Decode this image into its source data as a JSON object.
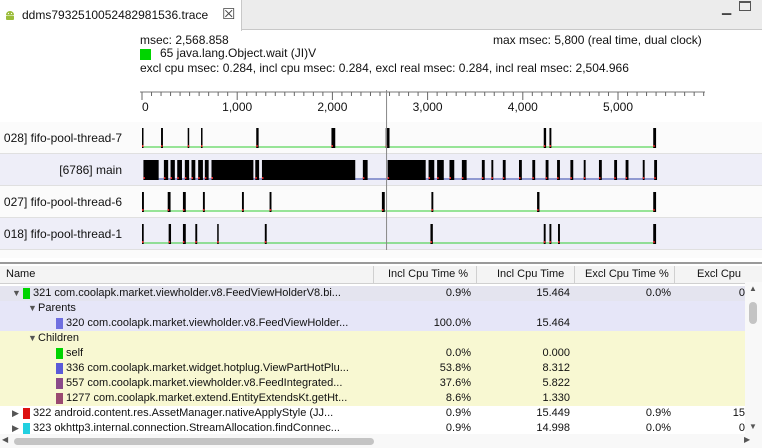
{
  "tab": {
    "title": "ddms7932510052482981536.trace",
    "close": "☒",
    "icon": "android-icon"
  },
  "window": {
    "minimize": "▁"
  },
  "header": {
    "msec": "msec: 2,568.858",
    "max_msec": "max msec: 5,800 (real time, dual clock)",
    "method_color": "#00d400",
    "method_name": "65 java.lang.Object.wait (JI)V",
    "excl_line": "excl cpu msec: 0.284, incl cpu msec: 0.284, excl real msec: 0.284, incl real msec: 2,504.966"
  },
  "timeline": {
    "ticks": [
      {
        "value": 0,
        "label": "0"
      },
      {
        "value": 1000,
        "label": "1,000"
      },
      {
        "value": 2000,
        "label": "2,000"
      },
      {
        "value": 3000,
        "label": "3,000"
      },
      {
        "value": 4000,
        "label": "4,000"
      },
      {
        "value": 5000,
        "label": "5,000"
      }
    ],
    "cursor_value": 2568.858,
    "threads": [
      {
        "label": "028] fifo-pool-thread-7",
        "line_color": "#33cc33",
        "events": [
          [
            0,
            15
          ],
          [
            200,
            220
          ],
          [
            480,
            490
          ],
          [
            620,
            635
          ],
          [
            1200,
            1225
          ],
          [
            1990,
            2030
          ],
          [
            2560,
            2600
          ],
          [
            4220,
            4245
          ],
          [
            4280,
            4300
          ],
          [
            5370,
            5400
          ]
        ]
      },
      {
        "label": "[6786] main",
        "line_color": "#3344aa",
        "events": [
          [
            15,
            175
          ],
          [
            230,
            275
          ],
          [
            300,
            345
          ],
          [
            370,
            420
          ],
          [
            450,
            495
          ],
          [
            520,
            560
          ],
          [
            590,
            640
          ],
          [
            660,
            700
          ],
          [
            730,
            1170
          ],
          [
            1190,
            1230
          ],
          [
            1260,
            2240
          ],
          [
            2320,
            2370
          ],
          [
            2580,
            2980
          ],
          [
            3010,
            3070
          ],
          [
            3100,
            3170
          ],
          [
            3230,
            3280
          ],
          [
            3360,
            3410
          ],
          [
            3570,
            3600
          ],
          [
            3670,
            3690
          ],
          [
            3790,
            3820
          ],
          [
            3960,
            3990
          ],
          [
            4100,
            4130
          ],
          [
            4240,
            4270
          ],
          [
            4360,
            4390
          ],
          [
            4500,
            4530
          ],
          [
            4640,
            4660
          ],
          [
            4800,
            4830
          ],
          [
            4960,
            4990
          ],
          [
            5080,
            5110
          ],
          [
            5260,
            5280
          ],
          [
            5380,
            5410
          ]
        ]
      },
      {
        "label": "027] fifo-pool-thread-6",
        "line_color": "#33cc33",
        "events": [
          [
            0,
            20
          ],
          [
            270,
            300
          ],
          [
            430,
            460
          ],
          [
            640,
            660
          ],
          [
            1050,
            1070
          ],
          [
            1340,
            1360
          ],
          [
            2520,
            2550
          ],
          [
            3040,
            3060
          ],
          [
            4150,
            4175
          ],
          [
            5370,
            5400
          ]
        ]
      },
      {
        "label": "018] fifo-pool-thread-1",
        "line_color": "#33cc33",
        "events": [
          [
            0,
            18
          ],
          [
            280,
            305
          ],
          [
            430,
            460
          ],
          [
            560,
            580
          ],
          [
            790,
            805
          ],
          [
            1290,
            1310
          ],
          [
            3030,
            3055
          ],
          [
            4220,
            4240
          ],
          [
            4280,
            4300
          ],
          [
            4370,
            4390
          ],
          [
            5370,
            5400
          ]
        ]
      }
    ]
  },
  "table": {
    "columns": [
      "Name",
      "Incl Cpu Time %",
      "Incl Cpu Time",
      "Excl Cpu Time %",
      "Excl Cpu"
    ],
    "rows": [
      {
        "kind": "method",
        "expanded": true,
        "selected": true,
        "color": "#00d400",
        "name": "321 com.coolapk.market.viewholder.v8.FeedViewHolderV8.bi...",
        "incl_pct": "0.9%",
        "incl": "15.464",
        "excl_pct": "0.0%",
        "excl": "0"
      },
      {
        "kind": "group",
        "name": "Parents"
      },
      {
        "kind": "parent",
        "color": "#6f6fe0",
        "name": "320 com.coolapk.market.viewholder.v8.FeedViewHolder...",
        "incl_pct": "100.0%",
        "incl": "15.464",
        "excl_pct": "",
        "excl": ""
      },
      {
        "kind": "group",
        "name": "Children"
      },
      {
        "kind": "child",
        "color": "#00d400",
        "name": "self",
        "incl_pct": "0.0%",
        "incl": "0.000",
        "excl_pct": "",
        "excl": ""
      },
      {
        "kind": "child",
        "color": "#5a5ad8",
        "name": "336 com.coolapk.market.widget.hotplug.ViewPartHotPlu...",
        "incl_pct": "53.8%",
        "incl": "8.312",
        "excl_pct": "",
        "excl": ""
      },
      {
        "kind": "child",
        "color": "#8a4a8a",
        "name": "557 com.coolapk.market.viewholder.v8.FeedIntegrated...",
        "incl_pct": "37.6%",
        "incl": "5.822",
        "excl_pct": "",
        "excl": ""
      },
      {
        "kind": "child",
        "color": "#9a4a70",
        "name": "1277 com.coolapk.market.extend.EntityExtendsKt.getHt...",
        "incl_pct": "8.6%",
        "incl": "1.330",
        "excl_pct": "",
        "excl": ""
      },
      {
        "kind": "method",
        "expanded": false,
        "selected": false,
        "color": "#dd1111",
        "name": "322 android.content.res.AssetManager.nativeApplyStyle (JJ...",
        "incl_pct": "0.9%",
        "incl": "15.449",
        "excl_pct": "0.9%",
        "excl": "15"
      },
      {
        "kind": "method",
        "expanded": false,
        "selected": false,
        "color": "#22d0e0",
        "name": "323 okhttp3.internal.connection.StreamAllocation.findConnec...",
        "incl_pct": "0.9%",
        "incl": "14.998",
        "excl_pct": "0.0%",
        "excl": "0"
      }
    ]
  },
  "colors": {
    "selected_row": "#e4e4ef",
    "parents_bg": "#e6e6f8",
    "children_bg": "#f8f8d2",
    "accent_green": "#00d400"
  }
}
